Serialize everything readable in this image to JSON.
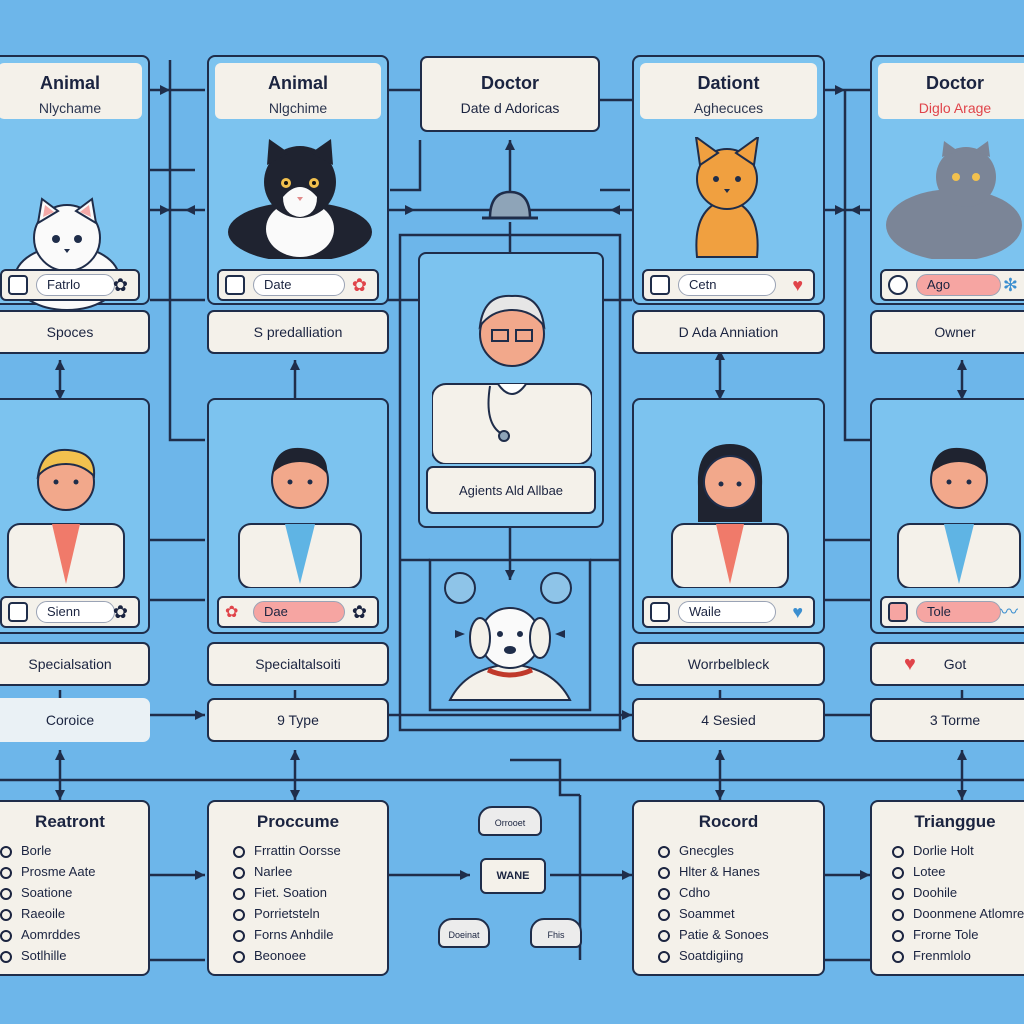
{
  "colors": {
    "background": "#6db6ea",
    "panel": "#7cc3ef",
    "ink": "#1f2d4a",
    "paper": "#f4f1ea",
    "accent_red": "#e0444a"
  },
  "top_cards": [
    {
      "title": "Animal",
      "subtitle": "Nlychame",
      "field": "Fatrlo",
      "below": "Spoces",
      "icon": "white-cat-icon"
    },
    {
      "title": "Animal",
      "subtitle": "Nlgchime",
      "field": "Date",
      "below": "S predalliation",
      "icon": "tuxedo-cat-icon"
    },
    {
      "title": "Doctor",
      "subtitle": "Date d Adoricas",
      "icon": "doctor-box"
    },
    {
      "title": "Dationt",
      "subtitle": "Aghecuces",
      "field": "Cetn",
      "below": "D Ada Anniation",
      "icon": "orange-cat-icon"
    },
    {
      "title": "Doctor",
      "subtitle": "Diglo Arage",
      "field": "Ago",
      "below": "Owner",
      "icon": "grey-cat-icon"
    }
  ],
  "center": {
    "doctor_label": "Agients Ald Allbae",
    "mini_label": "WANE",
    "cloud_top": "Orrooet",
    "cloud_left": "Doeinat",
    "cloud_right": "Fhis"
  },
  "mid_cards": [
    {
      "field": "Sienn",
      "below1": "Specialsation",
      "below2": "Coroice"
    },
    {
      "field": "Dae",
      "below1": "Specialtalsoiti",
      "below2": "9 Type"
    },
    {
      "field": "Waile",
      "below1": "Worrbelbleck",
      "below2": "4 Sesied"
    },
    {
      "field": "Tole",
      "below1": "Got",
      "below2": "3 Torme"
    }
  ],
  "lists": [
    {
      "title": "Reatront",
      "items": [
        "Borle",
        "Prosme Aate",
        "Soatione",
        "Raeoile",
        "Aomrddes",
        "Sotlhille"
      ]
    },
    {
      "title": "Proccume",
      "items": [
        "Frrattin Oorsse",
        "Narlee",
        "Fiet. Soation",
        "Porrietsteln",
        "Forns Anhdile",
        "Beonoee"
      ]
    },
    {
      "title": "Rocord",
      "items": [
        "Gnecgles",
        "Hlter & Hanes",
        "Cdho",
        "Soammet",
        "Patie & Sonoes",
        "Soatdigiing"
      ]
    },
    {
      "title": "Trianggue",
      "items": [
        "Dorlie Holt",
        "Lotee",
        "Doohile",
        "Doonmene Atlomre",
        "Frorne Tole",
        "Frenmlolo"
      ]
    }
  ]
}
